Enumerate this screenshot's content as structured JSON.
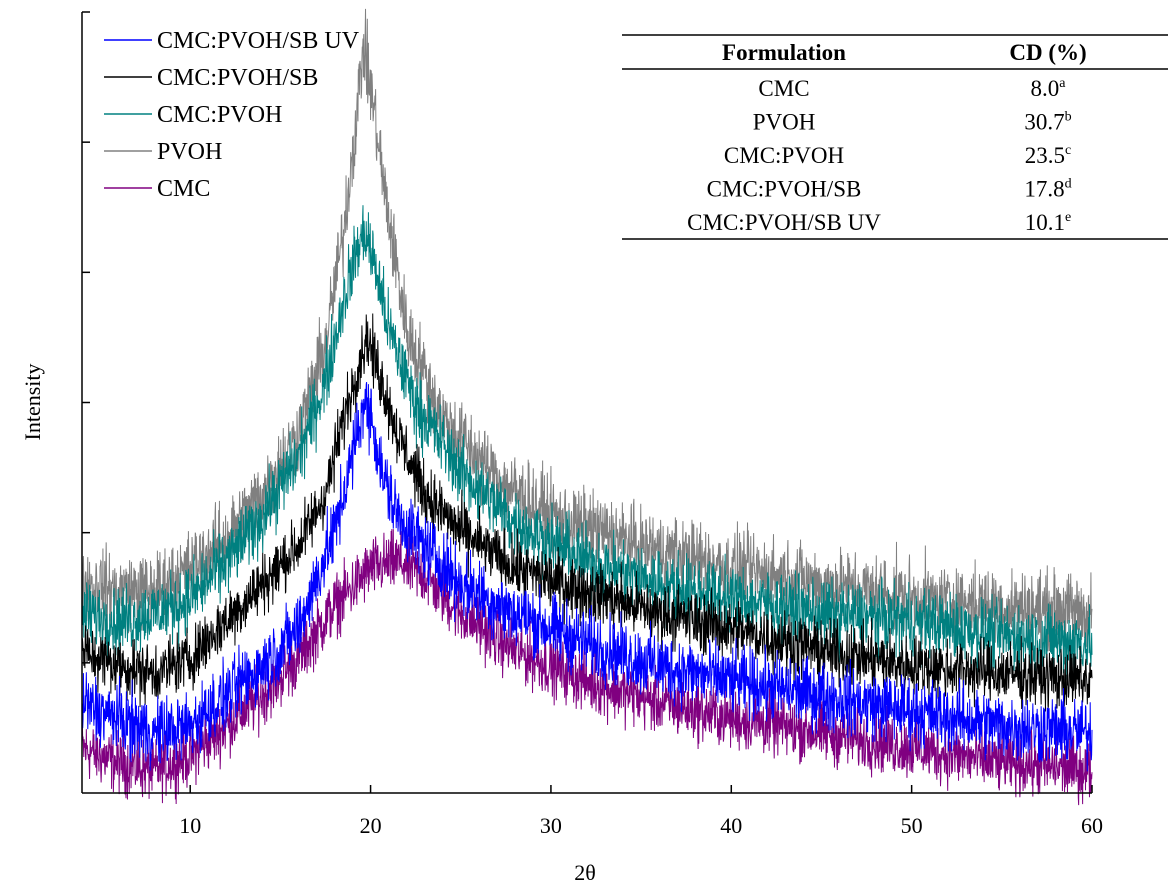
{
  "chart_data": {
    "type": "line",
    "title": "",
    "xlabel": "2θ",
    "ylabel": "Intensity",
    "xlim": [
      4,
      60
    ],
    "ylim": [
      0,
      100
    ],
    "x_ticks": [
      10,
      20,
      30,
      40,
      50,
      60
    ],
    "y_tick_labels": "none",
    "grid": false,
    "legend_position": "top-left",
    "series": [
      {
        "name": "CMC:PVOH/SB UV",
        "color": "#0000ff",
        "noise": 4.5,
        "points": [
          [
            4,
            12
          ],
          [
            6,
            10
          ],
          [
            8,
            8
          ],
          [
            10,
            9
          ],
          [
            12,
            13
          ],
          [
            14,
            17
          ],
          [
            16,
            22
          ],
          [
            18,
            35
          ],
          [
            19,
            45
          ],
          [
            19.6,
            52
          ],
          [
            20,
            51
          ],
          [
            20.6,
            43
          ],
          [
            21.5,
            37
          ],
          [
            23,
            33
          ],
          [
            25,
            28
          ],
          [
            28,
            24
          ],
          [
            32,
            20
          ],
          [
            36,
            17
          ],
          [
            40,
            15
          ],
          [
            45,
            13
          ],
          [
            50,
            11
          ],
          [
            55,
            9
          ],
          [
            60,
            8
          ]
        ]
      },
      {
        "name": "CMC:PVOH/SB",
        "color": "#000000",
        "noise": 4,
        "points": [
          [
            4,
            19
          ],
          [
            6,
            17
          ],
          [
            8,
            16
          ],
          [
            10,
            18
          ],
          [
            12,
            23
          ],
          [
            14,
            28
          ],
          [
            16,
            33
          ],
          [
            17.5,
            40
          ],
          [
            18.5,
            50
          ],
          [
            19.3,
            57
          ],
          [
            19.8,
            61
          ],
          [
            20.5,
            56
          ],
          [
            21.5,
            48
          ],
          [
            23,
            40
          ],
          [
            25,
            35
          ],
          [
            28,
            30
          ],
          [
            32,
            27
          ],
          [
            36,
            24
          ],
          [
            40,
            22
          ],
          [
            45,
            19
          ],
          [
            50,
            17
          ],
          [
            55,
            16
          ],
          [
            60,
            15
          ]
        ]
      },
      {
        "name": "CMC:PVOH",
        "color": "#008080",
        "noise": 4.5,
        "points": [
          [
            4,
            24
          ],
          [
            6,
            23
          ],
          [
            8,
            24
          ],
          [
            10,
            26
          ],
          [
            12,
            31
          ],
          [
            14,
            37
          ],
          [
            16,
            45
          ],
          [
            17.5,
            55
          ],
          [
            18.5,
            66
          ],
          [
            19.3,
            73
          ],
          [
            19.7,
            75
          ],
          [
            20.3,
            70
          ],
          [
            21,
            62
          ],
          [
            22.5,
            52
          ],
          [
            25,
            43
          ],
          [
            28,
            36
          ],
          [
            32,
            31
          ],
          [
            36,
            28
          ],
          [
            40,
            26
          ],
          [
            45,
            24
          ],
          [
            50,
            23
          ],
          [
            55,
            21
          ],
          [
            60,
            20
          ]
        ]
      },
      {
        "name": "PVOH",
        "color": "#808080",
        "noise": 5,
        "points": [
          [
            4,
            28
          ],
          [
            6,
            27
          ],
          [
            8,
            27
          ],
          [
            10,
            30
          ],
          [
            12,
            34
          ],
          [
            14,
            40
          ],
          [
            16,
            48
          ],
          [
            17.5,
            60
          ],
          [
            18.5,
            75
          ],
          [
            19.2,
            90
          ],
          [
            19.6,
            100
          ],
          [
            20.1,
            93
          ],
          [
            20.8,
            80
          ],
          [
            22,
            62
          ],
          [
            24,
            50
          ],
          [
            27,
            42
          ],
          [
            30,
            37
          ],
          [
            35,
            33
          ],
          [
            40,
            30
          ],
          [
            45,
            28
          ],
          [
            50,
            26
          ],
          [
            55,
            25
          ],
          [
            60,
            24
          ]
        ]
      },
      {
        "name": "CMC",
        "color": "#800080",
        "noise": 4,
        "points": [
          [
            4,
            6
          ],
          [
            6,
            4
          ],
          [
            8,
            3
          ],
          [
            10,
            5
          ],
          [
            12,
            9
          ],
          [
            14,
            13
          ],
          [
            16,
            18
          ],
          [
            18,
            25
          ],
          [
            20,
            30
          ],
          [
            21.5,
            31
          ],
          [
            23,
            29
          ],
          [
            25,
            24
          ],
          [
            28,
            19
          ],
          [
            32,
            15
          ],
          [
            36,
            12
          ],
          [
            40,
            10
          ],
          [
            45,
            8
          ],
          [
            50,
            6
          ],
          [
            55,
            4
          ],
          [
            60,
            3
          ]
        ]
      }
    ],
    "table": {
      "headers": [
        "Formulation",
        "CD (%)"
      ],
      "rows": [
        {
          "formulation": "CMC",
          "value": "8.0",
          "superscript": "a"
        },
        {
          "formulation": "PVOH",
          "value": "30.7",
          "superscript": "b"
        },
        {
          "formulation": "CMC:PVOH",
          "value": "23.5",
          "superscript": "c"
        },
        {
          "formulation": "CMC:PVOH/SB",
          "value": "17.8",
          "superscript": "d"
        },
        {
          "formulation": "CMC:PVOH/SB UV",
          "value": "10.1",
          "superscript": "e"
        }
      ]
    }
  }
}
